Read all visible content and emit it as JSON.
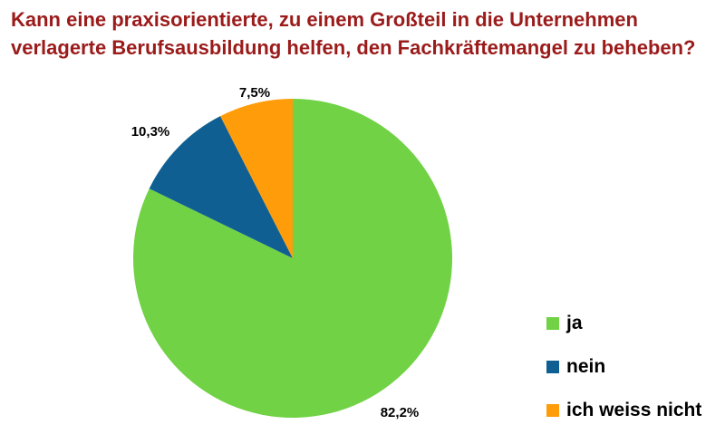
{
  "chart_data": {
    "type": "pie",
    "title_lines": [
      "Kann eine praxisorientierte, zu einem Großteil in die Unternehmen",
      "verlagerte Berufsausbildung helfen, den Fachkräftemangel zu beheben?"
    ],
    "slices": [
      {
        "label": "ja",
        "value": 82.2,
        "display": "82,2%",
        "color": "#70d244"
      },
      {
        "label": "nein",
        "value": 10.3,
        "display": "10,3%",
        "color": "#0f5f92"
      },
      {
        "label": "ich weiss nicht",
        "value": 7.5,
        "display": "7,5%",
        "color": "#ff9c0a"
      }
    ],
    "legend_placement": "right"
  }
}
